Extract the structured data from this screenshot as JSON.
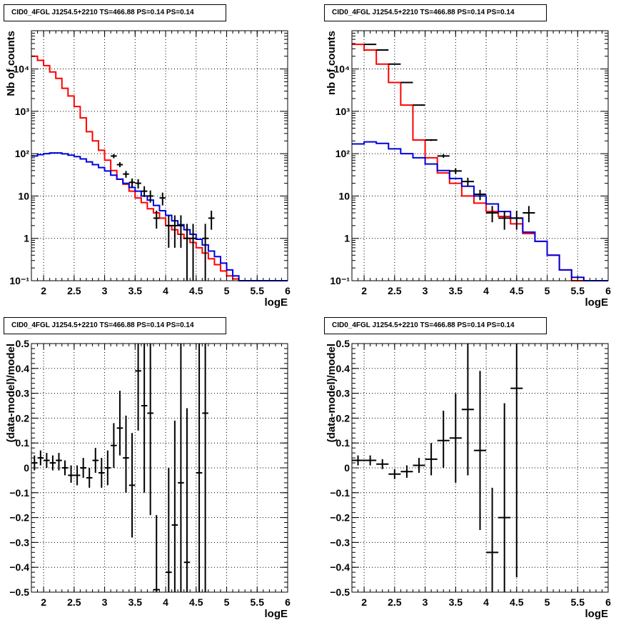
{
  "colors": {
    "data": "#000000",
    "total_model": "#ff0000",
    "component_model": "#0000dd",
    "grid": "#000000"
  },
  "chart_data": [
    {
      "type": "line",
      "title": "CID0_4FGL J1254.5+2210 TS=466.88 PS=0.14 PS=0.14",
      "xlabel": "logE",
      "ylabel": "Nb of counts",
      "xlim": [
        1.8,
        6
      ],
      "ylim": [
        0.1,
        80000
      ],
      "log_y": true,
      "grid": true,
      "xticks": [
        2,
        2.5,
        3,
        3.5,
        4,
        4.5,
        5,
        5.5,
        6
      ],
      "xtick_labels": [
        "2",
        "2.5",
        "3",
        "3.5",
        "4",
        "4.5",
        "5",
        "5.5",
        "6"
      ],
      "ytick_labels": [
        "10⁻¹",
        "1",
        "10",
        "10²",
        "10³",
        "10⁴"
      ],
      "bin_edges": [
        1.8,
        1.9,
        2.0,
        2.1,
        2.2,
        2.3,
        2.4,
        2.5,
        2.6,
        2.7,
        2.8,
        2.9,
        3.0,
        3.1,
        3.2,
        3.3,
        3.4,
        3.5,
        3.6,
        3.7,
        3.8,
        3.9,
        4.0,
        4.1,
        4.2,
        4.3,
        4.4,
        4.5,
        4.6,
        4.7,
        4.8,
        4.9,
        5.0,
        5.1,
        5.2,
        5.3,
        5.4,
        5.5,
        5.6,
        5.7,
        5.8,
        5.9,
        6.0
      ],
      "series": [
        {
          "role": "total_model",
          "values": [
            20000,
            16000,
            12000,
            8500,
            6000,
            3500,
            2300,
            1300,
            700,
            330,
            200,
            120,
            70,
            40,
            25,
            19,
            13,
            9,
            7,
            5,
            4,
            3,
            2,
            1.6,
            1.25,
            1.0,
            0.8,
            0.6,
            0.45,
            0.33,
            0.24,
            0.17,
            0.13,
            0.11,
            0.1,
            0.1,
            0.1,
            0.1,
            0.1,
            0.1,
            0.1,
            0.1
          ]
        },
        {
          "role": "component_model",
          "values": [
            88,
            95,
            100,
            104,
            104,
            99,
            92,
            85,
            75,
            64,
            55,
            47,
            39,
            31,
            25,
            20,
            16,
            13,
            10,
            8,
            6,
            4.5,
            3.5,
            2.6,
            2.1,
            1.6,
            1.25,
            0.95,
            0.7,
            0.5,
            0.37,
            0.26,
            0.18,
            0.13,
            0.1,
            0.1,
            0.1,
            0.1,
            0.1,
            0.1,
            0.1,
            0.1
          ]
        }
      ],
      "points": [
        {
          "x": 3.15,
          "y": 88,
          "ylo": 78,
          "yhi": 98
        },
        {
          "x": 3.25,
          "y": 55,
          "ylo": 48,
          "yhi": 63
        },
        {
          "x": 3.35,
          "y": 33,
          "ylo": 27,
          "yhi": 39
        },
        {
          "x": 3.45,
          "y": 21,
          "ylo": 16,
          "yhi": 26
        },
        {
          "x": 3.55,
          "y": 20,
          "ylo": 15,
          "yhi": 25
        },
        {
          "x": 3.65,
          "y": 13,
          "ylo": 9.5,
          "yhi": 17
        },
        {
          "x": 3.75,
          "y": 10,
          "ylo": 7,
          "yhi": 13.5
        },
        {
          "x": 3.85,
          "y": 3,
          "ylo": 1.7,
          "yhi": 4.5
        },
        {
          "x": 3.95,
          "y": 9,
          "ylo": 6,
          "yhi": 12
        },
        {
          "x": 4.05,
          "y": 2,
          "ylo": 0.6,
          "yhi": 3.5
        },
        {
          "x": 4.15,
          "y": 2,
          "ylo": 0.6,
          "yhi": 3.5
        },
        {
          "x": 4.25,
          "y": 2,
          "ylo": 0.6,
          "yhi": 3.5
        },
        {
          "x": 4.35,
          "y": 1,
          "ylo": 0.1,
          "yhi": 2.2
        },
        {
          "x": 4.45,
          "y": 1,
          "ylo": 0.1,
          "yhi": 2.2
        },
        {
          "x": 4.65,
          "y": 1,
          "ylo": 0.1,
          "yhi": 2.2
        },
        {
          "x": 4.75,
          "y": 3,
          "ylo": 1.6,
          "yhi": 4.5
        }
      ],
      "x_half_width": 0.05
    },
    {
      "type": "line",
      "title": "CID0_4FGL J1254.5+2210 TS=466.88 PS=0.14 PS=0.14",
      "xlabel": "logE",
      "ylabel": "nb of counts",
      "xlim": [
        1.8,
        6
      ],
      "ylim": [
        0.1,
        80000
      ],
      "log_y": true,
      "grid": true,
      "xticks": [
        2,
        2.5,
        3,
        3.5,
        4,
        4.5,
        5,
        5.5,
        6
      ],
      "xtick_labels": [
        "2",
        "2.5",
        "3",
        "3.5",
        "4",
        "4.5",
        "5",
        "5.5",
        "6"
      ],
      "ytick_labels": [
        "10⁻¹",
        "1",
        "10",
        "10²",
        "10³",
        "10⁴"
      ],
      "bin_edges": [
        1.8,
        2.0,
        2.2,
        2.4,
        2.6,
        2.8,
        3.0,
        3.2,
        3.4,
        3.6,
        3.8,
        4.0,
        4.2,
        4.4,
        4.6,
        4.8,
        5.0,
        5.2,
        5.4,
        5.6,
        5.8,
        6.0
      ],
      "series": [
        {
          "role": "total_model",
          "values": [
            38000,
            28000,
            13000,
            4800,
            1400,
            210,
            80,
            35,
            20,
            10,
            6.8,
            4.3,
            3.3,
            2.2,
            1.3,
            0.85,
            0.4,
            0.18,
            0.1,
            0.1,
            0.1
          ]
        },
        {
          "role": "component_model",
          "values": [
            170,
            190,
            175,
            130,
            100,
            80,
            57,
            40,
            26,
            17,
            10,
            6.5,
            4.3,
            3.0,
            1.4,
            0.85,
            0.4,
            0.18,
            0.12,
            0.1,
            0.1
          ]
        }
      ],
      "points": [
        {
          "x": 2.1,
          "y": 38000,
          "ylo": 37000,
          "yhi": 39000
        },
        {
          "x": 2.3,
          "y": 28000,
          "ylo": 27500,
          "yhi": 28500
        },
        {
          "x": 2.5,
          "y": 13000,
          "ylo": 12800,
          "yhi": 13200
        },
        {
          "x": 2.7,
          "y": 4800,
          "ylo": 4700,
          "yhi": 4900
        },
        {
          "x": 2.9,
          "y": 1400,
          "ylo": 1370,
          "yhi": 1430
        },
        {
          "x": 3.1,
          "y": 210,
          "ylo": 200,
          "yhi": 220
        },
        {
          "x": 3.3,
          "y": 88,
          "ylo": 80,
          "yhi": 97
        },
        {
          "x": 3.5,
          "y": 39,
          "ylo": 33,
          "yhi": 45
        },
        {
          "x": 3.7,
          "y": 22,
          "ylo": 17,
          "yhi": 27
        },
        {
          "x": 3.9,
          "y": 11,
          "ylo": 8,
          "yhi": 14
        },
        {
          "x": 4.1,
          "y": 4,
          "ylo": 2.4,
          "yhi": 5.8
        },
        {
          "x": 4.3,
          "y": 3,
          "ylo": 1.6,
          "yhi": 4.5
        },
        {
          "x": 4.5,
          "y": 3,
          "ylo": 1.6,
          "yhi": 4.5
        },
        {
          "x": 4.7,
          "y": 4,
          "ylo": 2.4,
          "yhi": 5.8
        }
      ],
      "x_half_width": 0.1
    },
    {
      "type": "scatter",
      "title": "CID0_4FGL J1254.5+2210 TS=466.88 PS=0.14 PS=0.14",
      "xlabel": "logE",
      "ylabel": "(data-model)/model",
      "xlim": [
        1.8,
        6
      ],
      "ylim": [
        -0.5,
        0.5
      ],
      "log_y": false,
      "grid": true,
      "xticks": [
        2,
        2.5,
        3,
        3.5,
        4,
        4.5,
        5,
        5.5,
        6
      ],
      "xtick_labels": [
        "2",
        "2.5",
        "3",
        "3.5",
        "4",
        "4.5",
        "5",
        "5.5",
        "6"
      ],
      "yticks": [
        -0.5,
        -0.4,
        -0.3,
        -0.2,
        -0.1,
        0,
        0.1,
        0.2,
        0.3,
        0.4,
        0.5
      ],
      "ytick_labels": [
        "−0.5",
        "−0.4",
        "−0.3",
        "−0.2",
        "−0.1",
        "0",
        "0.1",
        "0.2",
        "0.3",
        "0.4",
        "0.5"
      ],
      "points": [
        {
          "x": 1.85,
          "y": 0.02,
          "ylo": -0.01,
          "yhi": 0.05
        },
        {
          "x": 1.95,
          "y": 0.04,
          "ylo": 0.01,
          "yhi": 0.07
        },
        {
          "x": 2.05,
          "y": 0.03,
          "ylo": 0.0,
          "yhi": 0.06
        },
        {
          "x": 2.15,
          "y": 0.02,
          "ylo": -0.01,
          "yhi": 0.05
        },
        {
          "x": 2.25,
          "y": 0.03,
          "ylo": -0.01,
          "yhi": 0.06
        },
        {
          "x": 2.35,
          "y": 0.0,
          "ylo": -0.03,
          "yhi": 0.03
        },
        {
          "x": 2.45,
          "y": -0.03,
          "ylo": -0.06,
          "yhi": 0.01
        },
        {
          "x": 2.55,
          "y": -0.03,
          "ylo": -0.07,
          "yhi": 0.01
        },
        {
          "x": 2.65,
          "y": 0.0,
          "ylo": -0.04,
          "yhi": 0.04
        },
        {
          "x": 2.75,
          "y": -0.04,
          "ylo": -0.08,
          "yhi": 0.0
        },
        {
          "x": 2.85,
          "y": 0.03,
          "ylo": -0.02,
          "yhi": 0.08
        },
        {
          "x": 2.95,
          "y": -0.02,
          "ylo": -0.08,
          "yhi": 0.04
        },
        {
          "x": 3.05,
          "y": 0.0,
          "ylo": -0.07,
          "yhi": 0.07
        },
        {
          "x": 3.15,
          "y": 0.09,
          "ylo": 0.0,
          "yhi": 0.18
        },
        {
          "x": 3.25,
          "y": 0.16,
          "ylo": 0.05,
          "yhi": 0.31
        },
        {
          "x": 3.35,
          "y": 0.04,
          "ylo": -0.1,
          "yhi": 0.21
        },
        {
          "x": 3.45,
          "y": -0.07,
          "ylo": -0.28,
          "yhi": 0.14
        },
        {
          "x": 3.55,
          "y": 0.39,
          "ylo": 0.15,
          "yhi": 0.63
        },
        {
          "x": 3.65,
          "y": 0.25,
          "ylo": -0.1,
          "yhi": 0.6
        },
        {
          "x": 3.75,
          "y": 0.22,
          "ylo": -0.19,
          "yhi": 0.63
        },
        {
          "x": 3.85,
          "y": -0.49,
          "ylo": -0.6,
          "yhi": -0.19
        },
        {
          "x": 4.05,
          "y": -0.42,
          "ylo": -0.6,
          "yhi": -0.0
        },
        {
          "x": 4.15,
          "y": -0.23,
          "ylo": -0.6,
          "yhi": 0.19
        },
        {
          "x": 4.25,
          "y": -0.06,
          "ylo": -0.6,
          "yhi": 0.63
        },
        {
          "x": 4.35,
          "y": -0.38,
          "ylo": -0.6,
          "yhi": 0.24
        },
        {
          "x": 4.55,
          "y": -0.02,
          "ylo": -0.6,
          "yhi": 0.63
        },
        {
          "x": 4.65,
          "y": 0.22,
          "ylo": -0.6,
          "yhi": 0.63
        }
      ],
      "x_half_width": 0.05
    },
    {
      "type": "scatter",
      "title": "CID0_4FGL J1254.5+2210 TS=466.88 PS=0.14 PS=0.14",
      "xlabel": "logE",
      "ylabel": "(data-model)/model",
      "xlim": [
        1.8,
        6
      ],
      "ylim": [
        -0.5,
        0.5
      ],
      "log_y": false,
      "grid": true,
      "xticks": [
        2,
        2.5,
        3,
        3.5,
        4,
        4.5,
        5,
        5.5,
        6
      ],
      "xtick_labels": [
        "2",
        "2.5",
        "3",
        "3.5",
        "4",
        "4.5",
        "5",
        "5.5",
        "6"
      ],
      "yticks": [
        -0.5,
        -0.4,
        -0.3,
        -0.2,
        -0.1,
        0,
        0.1,
        0.2,
        0.3,
        0.4,
        0.5
      ],
      "ytick_labels": [
        "−0.5",
        "−0.4",
        "−0.3",
        "−0.2",
        "−0.1",
        "0",
        "0.1",
        "0.2",
        "0.3",
        "0.4",
        "0.5"
      ],
      "points": [
        {
          "x": 1.9,
          "y": 0.03,
          "ylo": 0.01,
          "yhi": 0.05
        },
        {
          "x": 2.1,
          "y": 0.03,
          "ylo": 0.01,
          "yhi": 0.05
        },
        {
          "x": 2.3,
          "y": 0.015,
          "ylo": -0.005,
          "yhi": 0.035
        },
        {
          "x": 2.5,
          "y": -0.025,
          "ylo": -0.045,
          "yhi": -0.005
        },
        {
          "x": 2.7,
          "y": -0.015,
          "ylo": -0.04,
          "yhi": 0.01
        },
        {
          "x": 2.9,
          "y": 0.01,
          "ylo": -0.02,
          "yhi": 0.04
        },
        {
          "x": 3.1,
          "y": 0.035,
          "ylo": -0.03,
          "yhi": 0.1
        },
        {
          "x": 3.3,
          "y": 0.11,
          "ylo": 0.0,
          "yhi": 0.23
        },
        {
          "x": 3.5,
          "y": 0.12,
          "ylo": -0.06,
          "yhi": 0.3
        },
        {
          "x": 3.7,
          "y": 0.235,
          "ylo": -0.03,
          "yhi": 0.5
        },
        {
          "x": 3.9,
          "y": 0.07,
          "ylo": -0.25,
          "yhi": 0.39
        },
        {
          "x": 4.1,
          "y": -0.34,
          "ylo": -0.6,
          "yhi": -0.08
        },
        {
          "x": 4.3,
          "y": -0.2,
          "ylo": -0.6,
          "yhi": 0.26
        },
        {
          "x": 4.5,
          "y": 0.32,
          "ylo": -0.44,
          "yhi": 0.63
        }
      ],
      "x_half_width": 0.1
    }
  ]
}
